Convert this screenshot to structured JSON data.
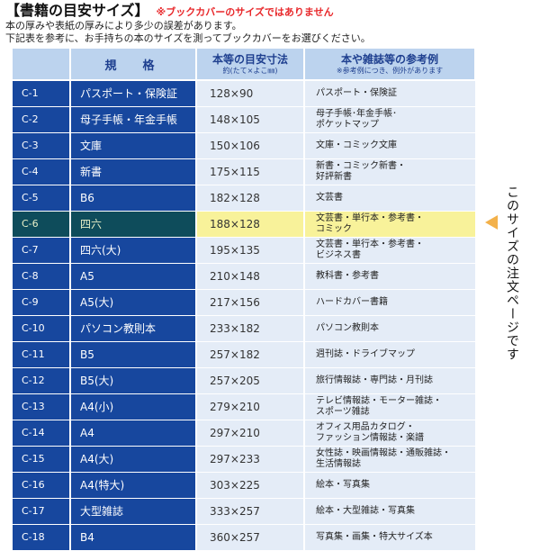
{
  "header": {
    "title": "【書籍の目安サイズ】",
    "note": "※ブックカバーのサイズではありません",
    "desc_line1": "本の厚みや表紙の厚みにより多少の誤差があります。",
    "desc_line2": "下記表を参考に、お手持ちの本のサイズを測ってブックカバーをお選びください。"
  },
  "table": {
    "headers": {
      "spec": "規　格",
      "size_main": "本等の目安寸法",
      "size_sub": "約(たて×よこ㎜)",
      "ref_main": "本や雑誌等の参考例",
      "ref_sub": "※参考例につき、例外があります"
    },
    "rows": [
      {
        "code": "C-1",
        "spec": "パスポート・保険証",
        "size": "128×90",
        "ref1": "パスポート・保険証",
        "ref2": ""
      },
      {
        "code": "C-2",
        "spec": "母子手帳・年金手帳",
        "size": "148×105",
        "ref1": "母子手帳･年金手帳･",
        "ref2": "ポケットマップ"
      },
      {
        "code": "C-3",
        "spec": "文庫",
        "size": "150×106",
        "ref1": "文庫・コミック文庫",
        "ref2": ""
      },
      {
        "code": "C-4",
        "spec": "新書",
        "size": "175×115",
        "ref1": "新書・コミック新書・",
        "ref2": "好評新書"
      },
      {
        "code": "C-5",
        "spec": "B6",
        "size": "182×128",
        "ref1": "文芸書",
        "ref2": ""
      },
      {
        "code": "C-6",
        "spec": "四六",
        "size": "188×128",
        "ref1": "文芸書・単行本・参考書・",
        "ref2": "コミック"
      },
      {
        "code": "C-7",
        "spec": "四六(大)",
        "size": "195×135",
        "ref1": "文芸書・単行本・参考書・",
        "ref2": "ビジネス書"
      },
      {
        "code": "C-8",
        "spec": "A5",
        "size": "210×148",
        "ref1": "教科書・参考書",
        "ref2": ""
      },
      {
        "code": "C-9",
        "spec": "A5(大)",
        "size": "217×156",
        "ref1": "ハードカバー書籍",
        "ref2": ""
      },
      {
        "code": "C-10",
        "spec": "パソコン教則本",
        "size": "233×182",
        "ref1": "パソコン教則本",
        "ref2": ""
      },
      {
        "code": "C-11",
        "spec": "B5",
        "size": "257×182",
        "ref1": "週刊誌・ドライブマップ",
        "ref2": ""
      },
      {
        "code": "C-12",
        "spec": "B5(大)",
        "size": "257×205",
        "ref1": "旅行情報誌・専門誌・月刊誌",
        "ref2": ""
      },
      {
        "code": "C-13",
        "spec": "A4(小)",
        "size": "279×210",
        "ref1": "テレビ情報誌・モーター雑誌・",
        "ref2": "スポーツ雑誌"
      },
      {
        "code": "C-14",
        "spec": "A4",
        "size": "297×210",
        "ref1": "オフィス用品カタログ・",
        "ref2": "ファッション情報誌・楽譜"
      },
      {
        "code": "C-15",
        "spec": "A4(大)",
        "size": "297×233",
        "ref1": "女性誌・映画情報誌・通販雑誌・",
        "ref2": "生活情報誌"
      },
      {
        "code": "C-16",
        "spec": "A4(特大)",
        "size": "303×225",
        "ref1": "絵本・写真集",
        "ref2": ""
      },
      {
        "code": "C-17",
        "spec": "大型雑誌",
        "size": "333×257",
        "ref1": "絵本・大型雑誌・写真集",
        "ref2": ""
      },
      {
        "code": "C-18",
        "spec": "B4",
        "size": "360×257",
        "ref1": "写真集・画集・特大サイズ本",
        "ref2": ""
      }
    ]
  },
  "side_note": "このサイズの注文ページです",
  "colors": {
    "row_blue": "#17479e",
    "header_bg": "#bcd3ee",
    "cell_bg": "#e4ecf7",
    "highlight_yellow": "#f8f29a",
    "arrow_orange": "#f3b14a",
    "note_red": "#e8282b"
  },
  "highlight_row": "C-6"
}
